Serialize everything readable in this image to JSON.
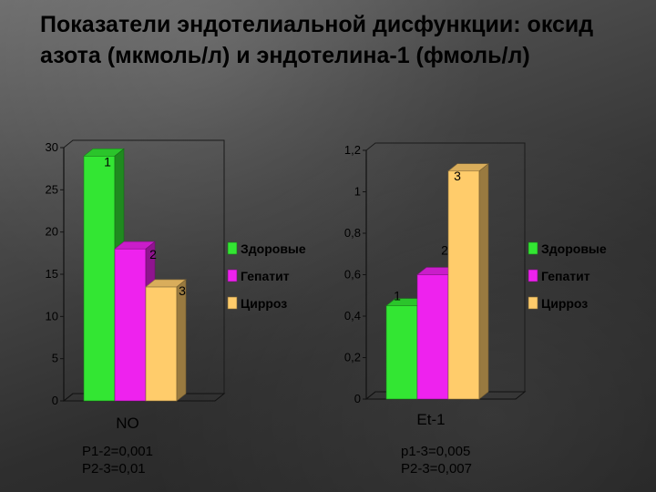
{
  "slide": {
    "title": "Показатели эндотелиальной дисфункции: оксид азота (мкмоль/л) и эндотелина-1 (фмоль/л)"
  },
  "chart_data": [
    {
      "type": "bar",
      "categories": [
        "Здоровые",
        "Гепатит",
        "Цирроз"
      ],
      "values": [
        29,
        18,
        13.5
      ],
      "colors": [
        "#33e633",
        "#ee22ee",
        "#ffcc6b"
      ],
      "ylim": [
        0,
        30
      ],
      "yticks": [
        "0",
        "5",
        "10",
        "15",
        "20",
        "25",
        "30"
      ],
      "bar_labels": [
        "1",
        "2",
        "3"
      ],
      "xlabel": "NO",
      "legend": [
        "Здоровые",
        "Гепатит",
        "Цирроз"
      ],
      "legend_position": "right",
      "notes": [
        "P1-2=0,001",
        "P2-3=0,01"
      ]
    },
    {
      "type": "bar",
      "categories": [
        "Здоровые",
        "Гепатит",
        "Цирроз"
      ],
      "values": [
        0.45,
        0.6,
        1.1
      ],
      "colors": [
        "#33e633",
        "#ee22ee",
        "#ffcc6b"
      ],
      "ylim": [
        0,
        1.2
      ],
      "yticks": [
        "0",
        "0,2",
        "0,4",
        "0,6",
        "0,8",
        "1",
        "1,2"
      ],
      "bar_labels": [
        "1",
        "2",
        "3"
      ],
      "xlabel": "Et-1",
      "legend": [
        "Здоровые",
        "Гепатит",
        "Цирроз"
      ],
      "legend_position": "right",
      "notes": [
        "p1-3=0,005",
        "P2-3=0,007"
      ]
    }
  ]
}
